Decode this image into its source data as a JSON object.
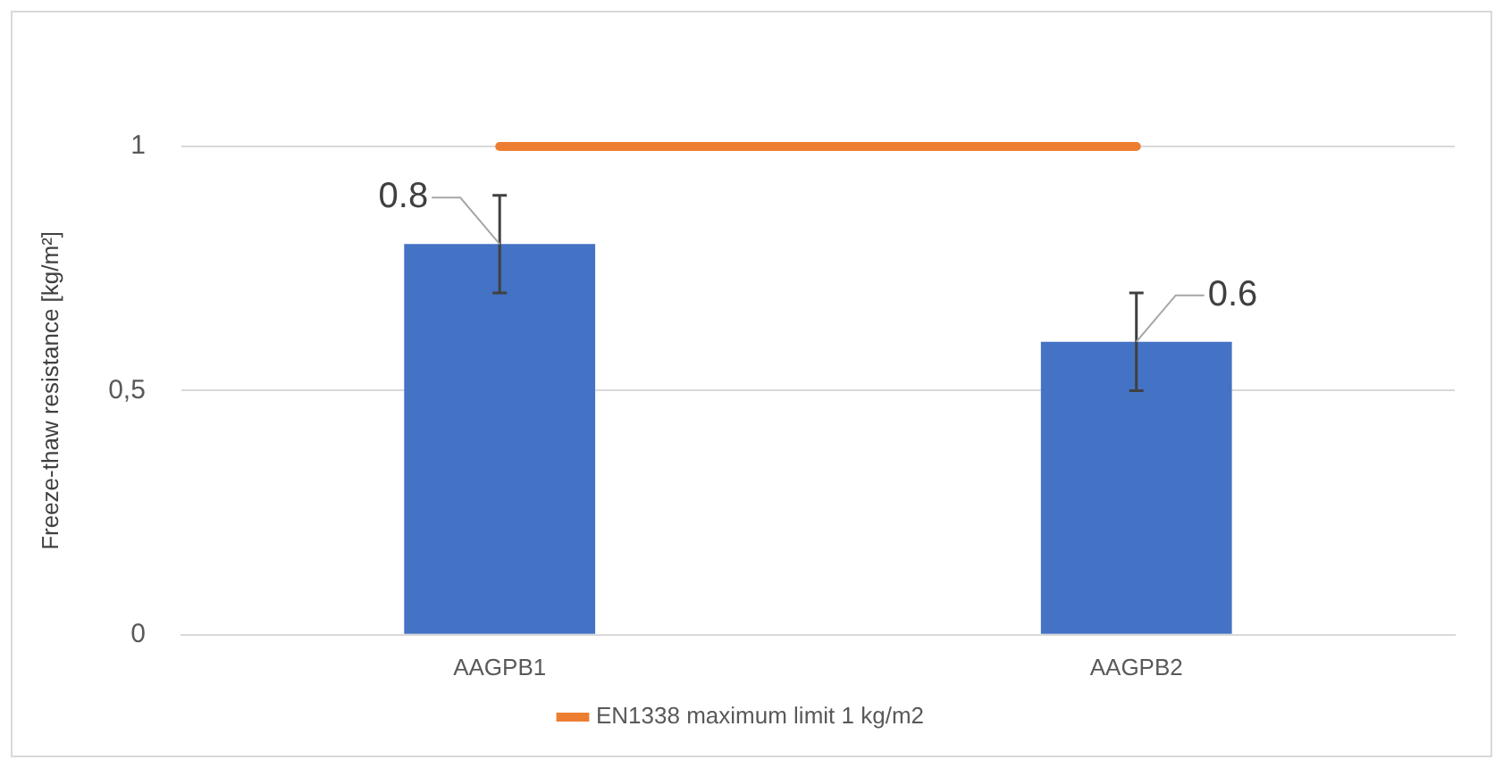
{
  "chart_data": {
    "type": "bar",
    "ylabel": "Freeze-thaw resistance [kg/m²]",
    "categories": [
      "AAGPB1",
      "AAGPB2"
    ],
    "series": [
      {
        "color": "#4472c4",
        "values": [
          0.8,
          0.6
        ],
        "errors": [
          0.1,
          0.1
        ],
        "value_labels": [
          "0.8",
          "0.6"
        ]
      },
      {
        "type": "line",
        "name": "EN1338 maximum limit 1 kg/m2",
        "color": "#ed7d31",
        "values": [
          1,
          1
        ]
      }
    ],
    "ylim": [
      0,
      1
    ],
    "yticks": [
      0,
      {
        "value": 0.5,
        "label": "0,5"
      },
      1
    ],
    "grid": "y",
    "legend": "bottom",
    "marker": "none"
  }
}
